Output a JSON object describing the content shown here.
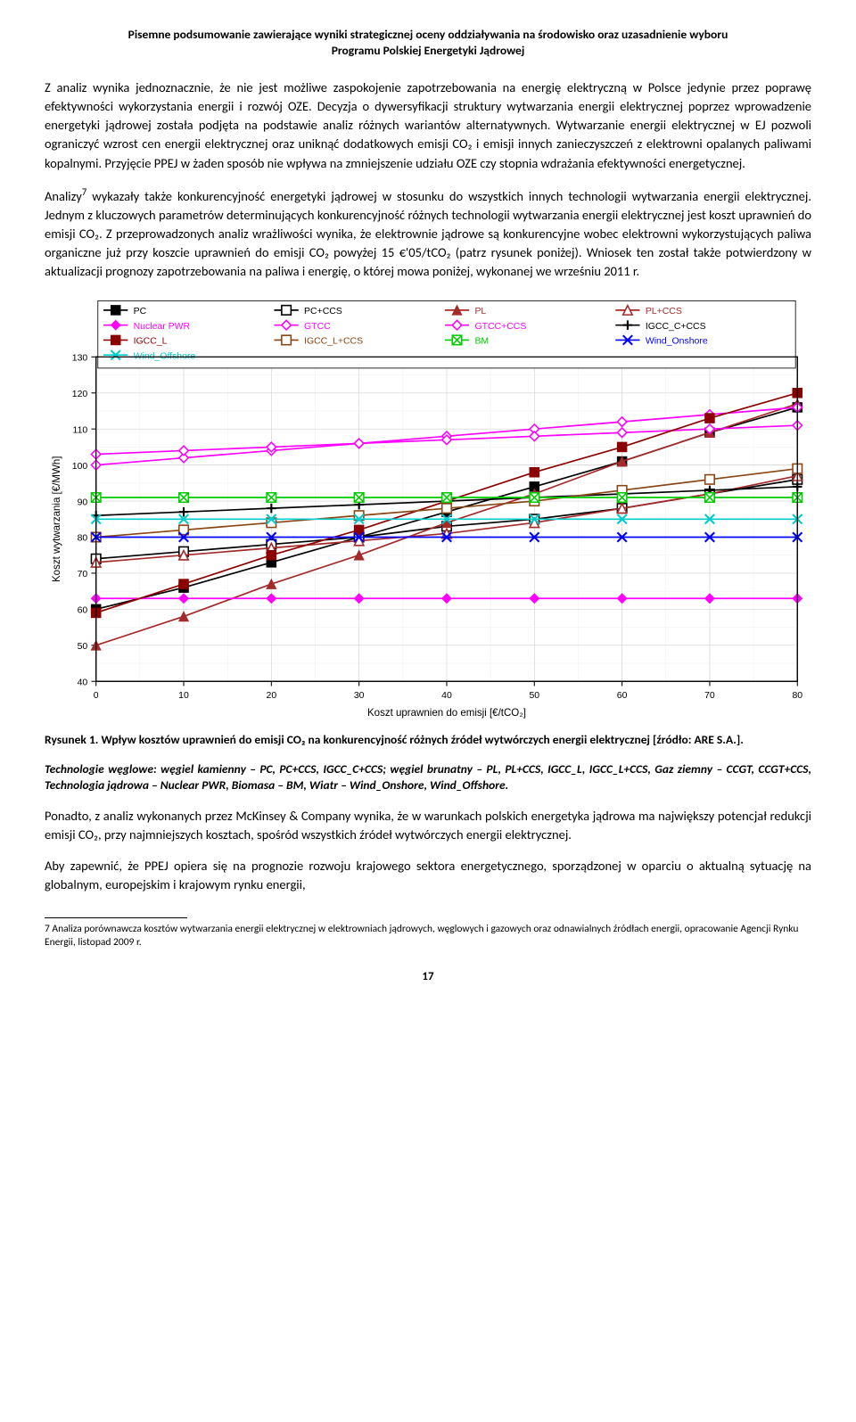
{
  "header": {
    "line1": "Pisemne podsumowanie zawierające wyniki strategicznej oceny oddziaływania na środowisko oraz uzasadnienie wyboru",
    "line2": "Programu Polskiej Energetyki Jądrowej"
  },
  "para1": "Z analiz wynika jednoznacznie, że nie jest możliwe zaspokojenie zapotrzebowania na energię elektryczną w Polsce jedynie przez poprawę efektywności wykorzystania energii i rozwój OZE. Decyzja o dywersyfikacji struktury wytwarzania energii elektrycznej poprzez wprowadzenie energetyki jądrowej została podjęta na podstawie analiz różnych wariantów alternatywnych. Wytwarzanie energii elektrycznej w EJ pozwoli ograniczyć wzrost cen energii elektrycznej oraz uniknąć dodatkowych emisji CO₂ i emisji innych zanieczyszczeń z elektrowni opalanych paliwami kopalnymi. Przyjęcie PPEJ w żaden sposób nie wpływa na zmniejszenie udziału OZE czy stopnia wdrażania efektywności energetycznej.",
  "para2_a": "Analizy",
  "para2_sup": "7",
  "para2_b": " wykazały także konkurencyjność energetyki jądrowej w stosunku do wszystkich innych technologii wytwarzania energii elektrycznej. Jednym z kluczowych parametrów determinujących konkurencyjność różnych technologii wytwarzania energii elektrycznej jest koszt uprawnień do emisji CO₂. Z przeprowadzonych analiz wrażliwości wynika, że elektrownie jądrowe są konkurencyjne wobec elektrowni wykorzystujących paliwa organiczne już przy koszcie uprawnień do emisji CO₂ powyżej 15 €'05/tCO₂ (patrz rysunek poniżej). Wniosek ten został także potwierdzony w aktualizacji prognozy zapotrzebowania na paliwa i energię, o której mowa poniżej, wykonanej we wrześniu 2011 r.",
  "chart": {
    "type": "line",
    "xlabel": "Koszt uprawnien do emisji [€/tCO₂]",
    "ylabel": "Koszt wytwarzania [€/MWh]",
    "xlim": [
      0,
      80
    ],
    "xtick_step": 10,
    "ylim": [
      40,
      130
    ],
    "ytick_step": 10,
    "background_color": "#ffffff",
    "axis_color": "#000000",
    "grid_major": "#d0d0d0",
    "grid_minor": "#eeeeee",
    "label_fontsize": 11,
    "tick_fontsize": 10,
    "legend_fontsize": 10,
    "legend_position": "top-inside",
    "legend_border": "#000000",
    "legend_bg": "#ffffff",
    "series": [
      {
        "name": "PC",
        "color": "#000000",
        "marker": "square-filled",
        "markerColor": "#000000",
        "values": [
          [
            0,
            60
          ],
          [
            10,
            66
          ],
          [
            20,
            73
          ],
          [
            30,
            80
          ],
          [
            40,
            87
          ],
          [
            50,
            94
          ],
          [
            60,
            101
          ],
          [
            70,
            109
          ],
          [
            80,
            116
          ]
        ]
      },
      {
        "name": "PC+CCS",
        "color": "#000000",
        "marker": "square-open",
        "markerColor": "#000000",
        "values": [
          [
            0,
            74
          ],
          [
            10,
            76
          ],
          [
            20,
            78
          ],
          [
            30,
            80
          ],
          [
            40,
            83
          ],
          [
            50,
            85
          ],
          [
            60,
            88
          ],
          [
            70,
            92
          ],
          [
            80,
            96
          ]
        ]
      },
      {
        "name": "PL",
        "color": "#a52a2a",
        "marker": "triangle-filled",
        "markerColor": "#a52a2a",
        "values": [
          [
            0,
            50
          ],
          [
            10,
            58
          ],
          [
            20,
            67
          ],
          [
            30,
            75
          ],
          [
            40,
            84
          ],
          [
            50,
            92
          ],
          [
            60,
            101
          ],
          [
            70,
            109
          ],
          [
            80,
            117
          ]
        ]
      },
      {
        "name": "PL+CCS",
        "color": "#a52a2a",
        "marker": "triangle-open",
        "markerColor": "#a52a2a",
        "values": [
          [
            0,
            73
          ],
          [
            10,
            75
          ],
          [
            20,
            77
          ],
          [
            30,
            79
          ],
          [
            40,
            81
          ],
          [
            50,
            84
          ],
          [
            60,
            88
          ],
          [
            70,
            92
          ],
          [
            80,
            97
          ]
        ]
      },
      {
        "name": "Nuclear PWR",
        "color": "#ff00ff",
        "marker": "diamond-filled",
        "markerColor": "#ff00ff",
        "values": [
          [
            0,
            63
          ],
          [
            10,
            63
          ],
          [
            20,
            63
          ],
          [
            30,
            63
          ],
          [
            40,
            63
          ],
          [
            50,
            63
          ],
          [
            60,
            63
          ],
          [
            70,
            63
          ],
          [
            80,
            63
          ]
        ]
      },
      {
        "name": "GTCC",
        "color": "#ff00ff",
        "marker": "diamond-open",
        "markerColor": "#ff00ff",
        "values": [
          [
            0,
            100
          ],
          [
            10,
            102
          ],
          [
            20,
            104
          ],
          [
            30,
            106
          ],
          [
            40,
            108
          ],
          [
            50,
            110
          ],
          [
            60,
            112
          ],
          [
            70,
            114
          ],
          [
            80,
            116
          ]
        ]
      },
      {
        "name": "GTCC+CCS",
        "color": "#ff00ff",
        "marker": "diamond-open",
        "markerColor": "#ff00ff",
        "values": [
          [
            0,
            103
          ],
          [
            10,
            104
          ],
          [
            20,
            105
          ],
          [
            30,
            106
          ],
          [
            40,
            107
          ],
          [
            50,
            108
          ],
          [
            60,
            109
          ],
          [
            70,
            110
          ],
          [
            80,
            111
          ]
        ]
      },
      {
        "name": "IGCC_C+CCS",
        "color": "#000000",
        "marker": "plus",
        "markerColor": "#000000",
        "values": [
          [
            0,
            86
          ],
          [
            10,
            87
          ],
          [
            20,
            88
          ],
          [
            30,
            89
          ],
          [
            40,
            90
          ],
          [
            50,
            91
          ],
          [
            60,
            92
          ],
          [
            70,
            93
          ],
          [
            80,
            94
          ]
        ]
      },
      {
        "name": "IGCC_L",
        "color": "#8b0000",
        "marker": "square-filled",
        "markerColor": "#8b0000",
        "values": [
          [
            0,
            59
          ],
          [
            10,
            67
          ],
          [
            20,
            75
          ],
          [
            30,
            82
          ],
          [
            40,
            90
          ],
          [
            50,
            98
          ],
          [
            60,
            105
          ],
          [
            70,
            113
          ],
          [
            80,
            120
          ]
        ]
      },
      {
        "name": "IGCC_L+CCS",
        "color": "#8b4513",
        "marker": "square-open",
        "markerColor": "#8b4513",
        "values": [
          [
            0,
            80
          ],
          [
            10,
            82
          ],
          [
            20,
            84
          ],
          [
            30,
            86
          ],
          [
            40,
            88
          ],
          [
            50,
            90
          ],
          [
            60,
            93
          ],
          [
            70,
            96
          ],
          [
            80,
            99
          ]
        ]
      },
      {
        "name": "BM",
        "color": "#00cc00",
        "marker": "x-square",
        "markerColor": "#00cc00",
        "values": [
          [
            0,
            91
          ],
          [
            10,
            91
          ],
          [
            20,
            91
          ],
          [
            30,
            91
          ],
          [
            40,
            91
          ],
          [
            50,
            91
          ],
          [
            60,
            91
          ],
          [
            70,
            91
          ],
          [
            80,
            91
          ]
        ]
      },
      {
        "name": "Wind_Onshore",
        "color": "#0000ff",
        "marker": "x",
        "markerColor": "#0000ff",
        "values": [
          [
            0,
            80
          ],
          [
            10,
            80
          ],
          [
            20,
            80
          ],
          [
            30,
            80
          ],
          [
            40,
            80
          ],
          [
            50,
            80
          ],
          [
            60,
            80
          ],
          [
            70,
            80
          ],
          [
            80,
            80
          ]
        ]
      },
      {
        "name": "Wind_Offshore",
        "color": "#00cccc",
        "marker": "x",
        "markerColor": "#00cccc",
        "values": [
          [
            0,
            85
          ],
          [
            10,
            85
          ],
          [
            20,
            85
          ],
          [
            30,
            85
          ],
          [
            40,
            85
          ],
          [
            50,
            85
          ],
          [
            60,
            85
          ],
          [
            70,
            85
          ],
          [
            80,
            85
          ]
        ]
      }
    ]
  },
  "fig_caption": "Rysunek 1. Wpływ kosztów uprawnień do emisji CO₂ na konkurencyjność różnych źródeł wytwórczych energii elektrycznej [źródło: ARE S.A.].",
  "tech_note": "Technologie węglowe: węgiel kamienny – PC, PC+CCS, IGCC_C+CCS; węgiel brunatny – PL, PL+CCS, IGCC_L, IGCC_L+CCS, Gaz ziemny – CCGT, CCGT+CCS, Technologia jądrowa – Nuclear PWR, Biomasa – BM, Wiatr – Wind_Onshore, Wind_Offshore.",
  "para3": "Ponadto, z analiz wykonanych przez McKinsey & Company wynika, że w warunkach polskich energetyka jądrowa ma największy potencjał redukcji emisji CO₂, przy najmniejszych kosztach, spośród wszystkich źródeł wytwórczych energii elektrycznej.",
  "para4": "Aby zapewnić, że PPEJ opiera się na prognozie rozwoju krajowego sektora energetycznego, sporządzonej w oparciu o aktualną sytuację na globalnym, europejskim i krajowym rynku energii,",
  "footnote": "7 Analiza porównawcza kosztów wytwarzania energii elektrycznej w elektrowniach jądrowych, węglowych i gazowych oraz odnawialnych źródłach energii, opracowanie Agencji Rynku Energii, listopad 2009 r.",
  "page_number": "17"
}
